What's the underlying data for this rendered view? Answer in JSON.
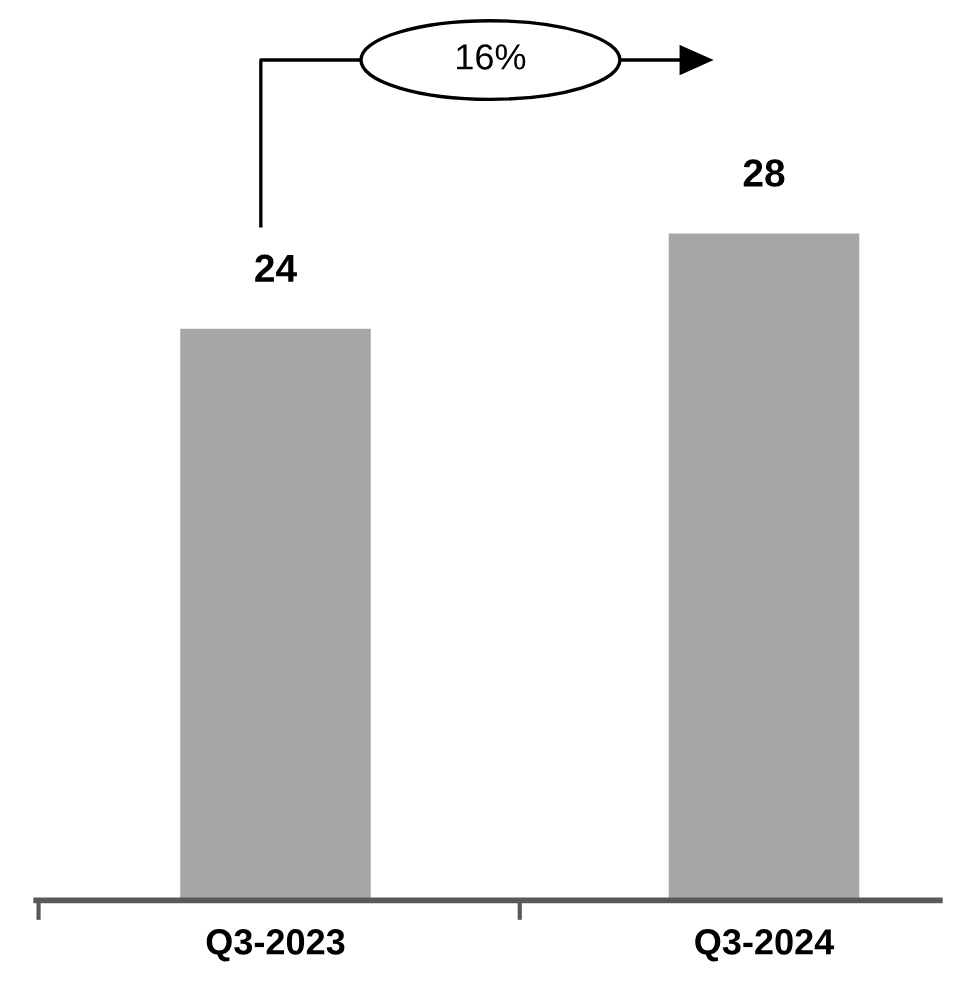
{
  "chart_data": {
    "type": "bar",
    "categories": [
      "Q3-2023",
      "Q3-2024"
    ],
    "values": [
      24,
      28
    ],
    "color": "#a6a6a6",
    "data_labels": true,
    "annotations": [
      "16%"
    ],
    "grid": false,
    "legend": false
  }
}
